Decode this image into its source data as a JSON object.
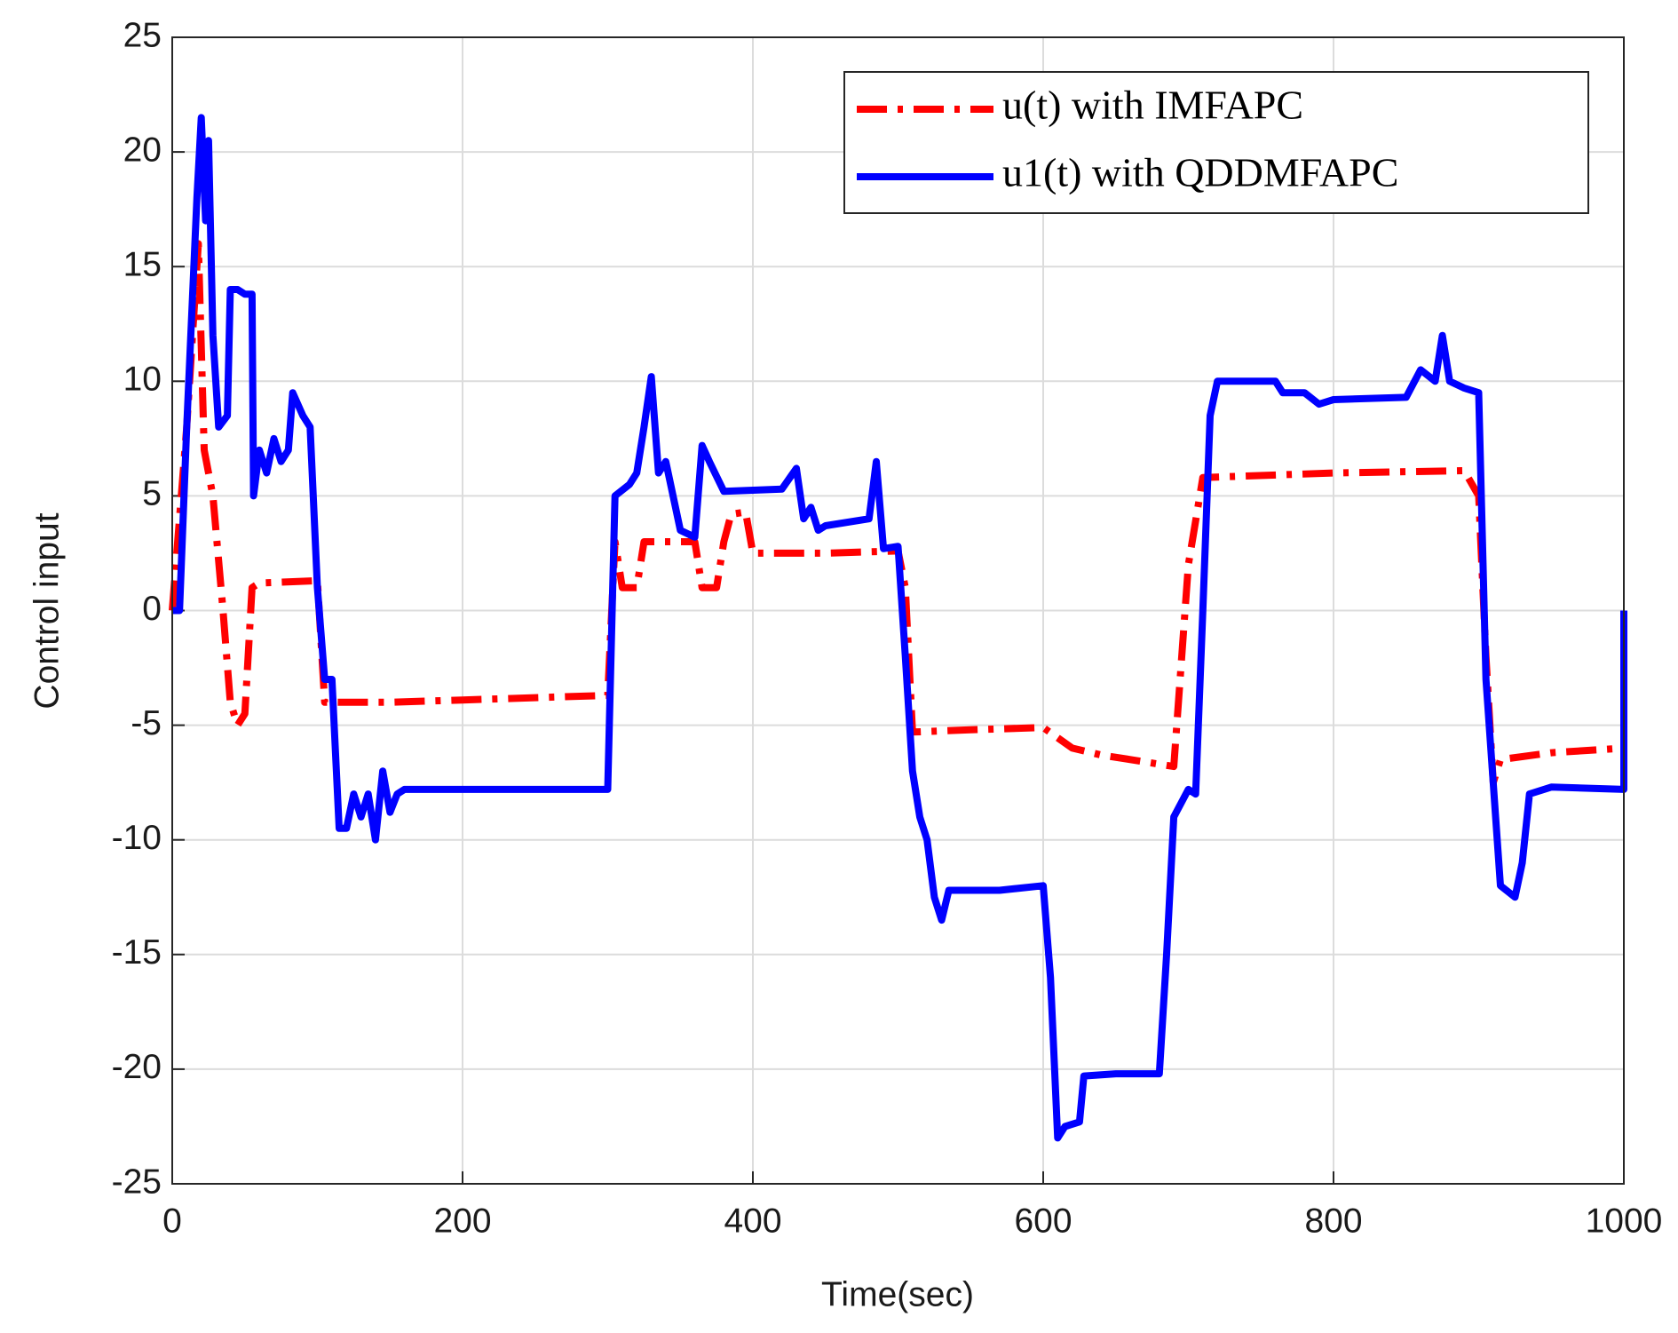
{
  "chart_data": {
    "type": "line",
    "xlabel": "Time(sec)",
    "ylabel": "Control input",
    "xlim": [
      0,
      1000
    ],
    "xticks": [
      0,
      200,
      400,
      600,
      800,
      1000
    ],
    "ylim": [
      -25,
      25
    ],
    "yticks": [
      -25,
      -20,
      -15,
      -10,
      -5,
      0,
      5,
      10,
      15,
      20,
      25
    ],
    "grid": true,
    "legend": "upper right",
    "series": [
      {
        "name": "u(t) with IMFAPC",
        "color": "#ff0000",
        "dash": "dashdot",
        "x": [
          0,
          10,
          18,
          22,
          28,
          35,
          40,
          45,
          50,
          55,
          60,
          100,
          105,
          150,
          200,
          300,
          305,
          310,
          320,
          325,
          340,
          360,
          365,
          375,
          380,
          385,
          395,
          400,
          450,
          500,
          505,
          510,
          550,
          600,
          620,
          640,
          660,
          690,
          700,
          710,
          800,
          890,
          900,
          905,
          910,
          915,
          950,
          1000
        ],
        "values": [
          0,
          8,
          16,
          7,
          5,
          0,
          -4,
          -5,
          -4.5,
          1,
          1.2,
          1.3,
          -4,
          -4,
          -3.9,
          -3.7,
          3,
          1,
          1,
          3,
          3,
          3,
          1,
          1,
          3,
          4.2,
          4.3,
          2.5,
          2.5,
          2.6,
          1,
          -5.3,
          -5.2,
          -5.1,
          -6,
          -6.3,
          -6.5,
          -6.8,
          2,
          5.8,
          6,
          6.1,
          5,
          -2,
          -7.5,
          -6.5,
          -6.2,
          -6
        ]
      },
      {
        "name": "u1(t) with QDDMFAPC",
        "color": "#0000ff",
        "dash": "solid",
        "x": [
          0,
          5,
          10,
          17,
          20,
          23,
          25,
          28,
          32,
          38,
          40,
          45,
          50,
          55,
          56,
          60,
          65,
          70,
          75,
          80,
          83,
          90,
          95,
          100,
          105,
          110,
          115,
          120,
          125,
          130,
          135,
          140,
          145,
          150,
          155,
          160,
          200,
          250,
          300,
          305,
          315,
          320,
          325,
          330,
          335,
          340,
          350,
          360,
          365,
          370,
          380,
          420,
          430,
          435,
          440,
          445,
          450,
          480,
          485,
          490,
          500,
          505,
          510,
          515,
          520,
          525,
          530,
          535,
          570,
          600,
          605,
          610,
          615,
          625,
          628,
          650,
          680,
          685,
          690,
          700,
          705,
          710,
          715,
          720,
          730,
          760,
          765,
          780,
          790,
          800,
          850,
          860,
          870,
          875,
          880,
          890,
          900,
          905,
          915,
          925,
          930,
          935,
          950,
          1000,
          1000
        ],
        "values": [
          0,
          0,
          8,
          18,
          21.5,
          17,
          20.5,
          12,
          8,
          8.5,
          14,
          14,
          13.8,
          13.8,
          5,
          7,
          6,
          7.5,
          6.5,
          7,
          9.5,
          8.5,
          8,
          1,
          -3,
          -3,
          -9.5,
          -9.5,
          -8,
          -9,
          -8,
          -10,
          -7,
          -8.8,
          -8,
          -7.8,
          -7.8,
          -7.8,
          -7.8,
          5,
          5.5,
          6,
          8,
          10.2,
          6,
          6.5,
          3.5,
          3.2,
          7.2,
          6.5,
          5.2,
          5.3,
          6.2,
          4,
          4.5,
          3.5,
          3.7,
          4,
          6.5,
          2.7,
          2.8,
          -2,
          -7,
          -9,
          -10,
          -12.5,
          -13.5,
          -12.2,
          -12.2,
          -12,
          -16,
          -23,
          -22.5,
          -22.3,
          -20.3,
          -20.2,
          -20.2,
          -15,
          -9,
          -7.8,
          -8,
          0,
          8.5,
          10,
          10,
          10,
          9.5,
          9.5,
          9,
          9.2,
          9.3,
          10.5,
          10,
          12,
          10,
          9.7,
          9.5,
          -3,
          -12,
          -12.5,
          -11,
          -8,
          -7.7,
          -7.8,
          0
        ]
      }
    ]
  }
}
